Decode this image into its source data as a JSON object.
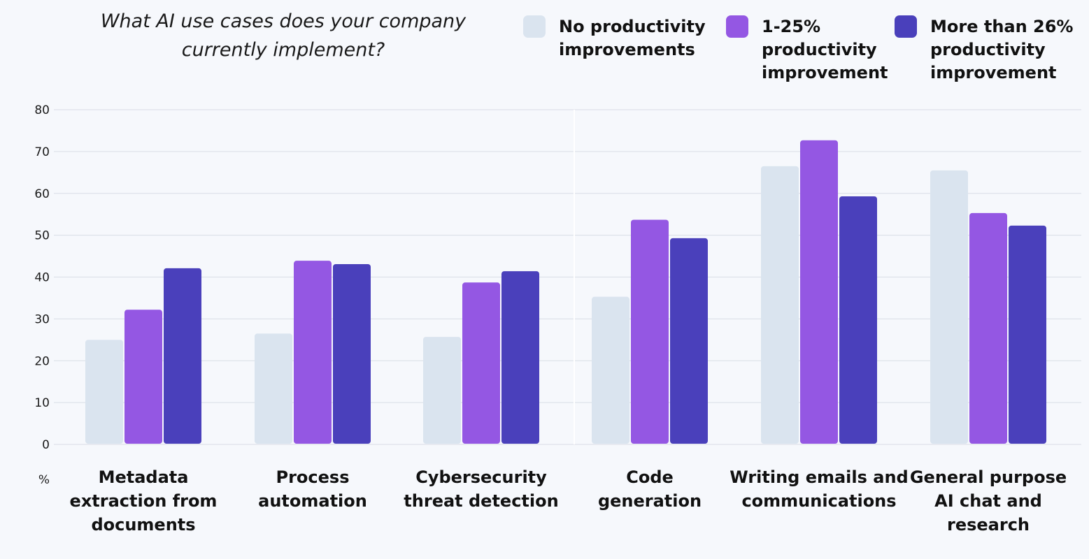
{
  "chart_data": {
    "type": "bar",
    "title": "What AI use cases does your company\ncurrently implement?",
    "ylabel": "%",
    "ylim": [
      0,
      80
    ],
    "yticks": [
      0,
      10,
      20,
      30,
      40,
      50,
      60,
      70,
      80
    ],
    "grid": true,
    "legend_position": "top-right",
    "categories": [
      "Metadata extraction from documents",
      "Process automation",
      "Cybersecurity threat detection",
      "Code generation",
      "Writing emails and communications",
      "General purpose AI chat and research"
    ],
    "category_lines": [
      [
        "Metadata",
        "extraction from",
        "documents"
      ],
      [
        "Process",
        "automation"
      ],
      [
        "Cybersecurity",
        "threat detection"
      ],
      [
        "Code",
        "generation"
      ],
      [
        "Writing emails and",
        "communications"
      ],
      [
        "General purpose",
        "AI chat and",
        "research"
      ]
    ],
    "series": [
      {
        "name": "No productivity\nimprovements",
        "color": "#dae4ef",
        "values": [
          25,
          26.5,
          25.7,
          35.3,
          66.5,
          65.5
        ]
      },
      {
        "name": "1-25%\nproductivity\nimprovement",
        "color": "#9457e3",
        "values": [
          32.2,
          43.9,
          38.7,
          53.7,
          72.7,
          55.3
        ]
      },
      {
        "name": "More than 26%\nproductivity\nimprovement",
        "color": "#4a40bb",
        "values": [
          42.1,
          43.1,
          41.4,
          49.3,
          59.3,
          52.3
        ]
      }
    ]
  }
}
